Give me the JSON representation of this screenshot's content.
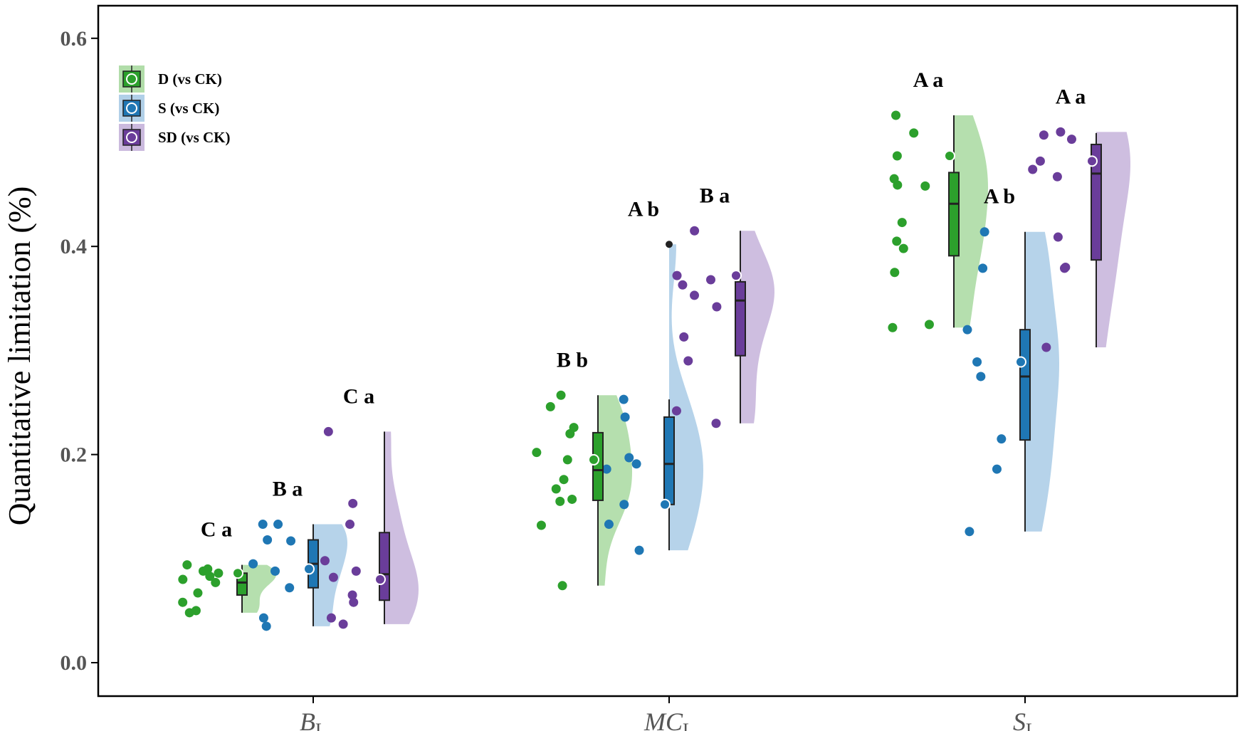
{
  "chart_data": {
    "type": "raincloud",
    "ylabel": "Quantitative limitation (%)",
    "ylim": [
      -0.03,
      0.63
    ],
    "yticks": [
      "0.0",
      "0.2",
      "0.4",
      "0.6"
    ],
    "ytick_values": [
      0,
      0.2,
      0.4,
      0.6
    ],
    "grid": false,
    "legend_position": "top-left",
    "categories": [
      {
        "main": "B",
        "sub": "L"
      },
      {
        "main": "MC",
        "sub": "L"
      },
      {
        "main": "S",
        "sub": "L"
      }
    ],
    "series": [
      {
        "name": "D (vs CK)",
        "color": "#2ca02c",
        "fill": "#a8d9a0"
      },
      {
        "name": "S (vs CK)",
        "color": "#1f77b4",
        "fill": "#a9cbe6"
      },
      {
        "name": "SD (vs CK)",
        "color": "#6a3d9a",
        "fill": "#c5b3da"
      }
    ],
    "groups": [
      {
        "category": 0,
        "series": 0,
        "label": "C a",
        "box": {
          "q1": 0.065,
          "median": 0.077,
          "q3": 0.086,
          "lower": 0.048,
          "upper": 0.094
        },
        "mean": 0.086,
        "points": [
          0.048,
          0.05,
          0.058,
          0.067,
          0.077,
          0.08,
          0.083,
          0.086,
          0.088,
          0.09,
          0.094
        ],
        "outliers": []
      },
      {
        "category": 0,
        "series": 1,
        "label": "B a",
        "box": {
          "q1": 0.072,
          "median": 0.095,
          "q3": 0.118,
          "lower": 0.035,
          "upper": 0.133
        },
        "mean": 0.09,
        "points": [
          0.035,
          0.043,
          0.072,
          0.088,
          0.095,
          0.117,
          0.118,
          0.133,
          0.133
        ],
        "outliers": []
      },
      {
        "category": 0,
        "series": 2,
        "label": "C a",
        "box": {
          "q1": 0.06,
          "median": 0.085,
          "q3": 0.125,
          "lower": 0.037,
          "upper": 0.222
        },
        "mean": 0.08,
        "points": [
          0.037,
          0.043,
          0.058,
          0.065,
          0.082,
          0.088,
          0.098,
          0.133,
          0.153,
          0.222
        ],
        "outliers": []
      },
      {
        "category": 1,
        "series": 0,
        "label": "B b",
        "box": {
          "q1": 0.156,
          "median": 0.185,
          "q3": 0.221,
          "lower": 0.074,
          "upper": 0.257
        },
        "mean": 0.195,
        "points": [
          0.074,
          0.132,
          0.155,
          0.157,
          0.167,
          0.176,
          0.195,
          0.202,
          0.22,
          0.226,
          0.246,
          0.257
        ],
        "outliers": []
      },
      {
        "category": 1,
        "series": 1,
        "label": "A b",
        "box": {
          "q1": 0.152,
          "median": 0.191,
          "q3": 0.236,
          "lower": 0.108,
          "upper": 0.253
        },
        "mean": 0.152,
        "points": [
          0.108,
          0.133,
          0.152,
          0.186,
          0.191,
          0.197,
          0.236,
          0.253,
          0.402
        ],
        "outliers": [
          0.402
        ]
      },
      {
        "category": 1,
        "series": 2,
        "label": "B a",
        "box": {
          "q1": 0.295,
          "median": 0.348,
          "q3": 0.366,
          "lower": 0.23,
          "upper": 0.415
        },
        "mean": 0.372,
        "points": [
          0.23,
          0.242,
          0.29,
          0.313,
          0.342,
          0.353,
          0.363,
          0.368,
          0.372,
          0.415
        ],
        "outliers": []
      },
      {
        "category": 2,
        "series": 0,
        "label": "A a",
        "box": {
          "q1": 0.391,
          "median": 0.441,
          "q3": 0.471,
          "lower": 0.322,
          "upper": 0.526
        },
        "mean": 0.487,
        "points": [
          0.322,
          0.325,
          0.375,
          0.398,
          0.405,
          0.423,
          0.458,
          0.459,
          0.465,
          0.487,
          0.509,
          0.526
        ],
        "outliers": []
      },
      {
        "category": 2,
        "series": 1,
        "label": "A b",
        "box": {
          "q1": 0.214,
          "median": 0.275,
          "q3": 0.32,
          "lower": 0.126,
          "upper": 0.414
        },
        "mean": 0.289,
        "points": [
          0.126,
          0.186,
          0.215,
          0.275,
          0.289,
          0.32,
          0.379,
          0.414
        ],
        "outliers": []
      },
      {
        "category": 2,
        "series": 2,
        "label": "A a",
        "box": {
          "q1": 0.387,
          "median": 0.47,
          "q3": 0.498,
          "lower": 0.303,
          "upper": 0.509
        },
        "mean": 0.482,
        "points": [
          0.303,
          0.379,
          0.38,
          0.409,
          0.467,
          0.474,
          0.482,
          0.503,
          0.507,
          0.51
        ],
        "outliers": []
      }
    ]
  }
}
